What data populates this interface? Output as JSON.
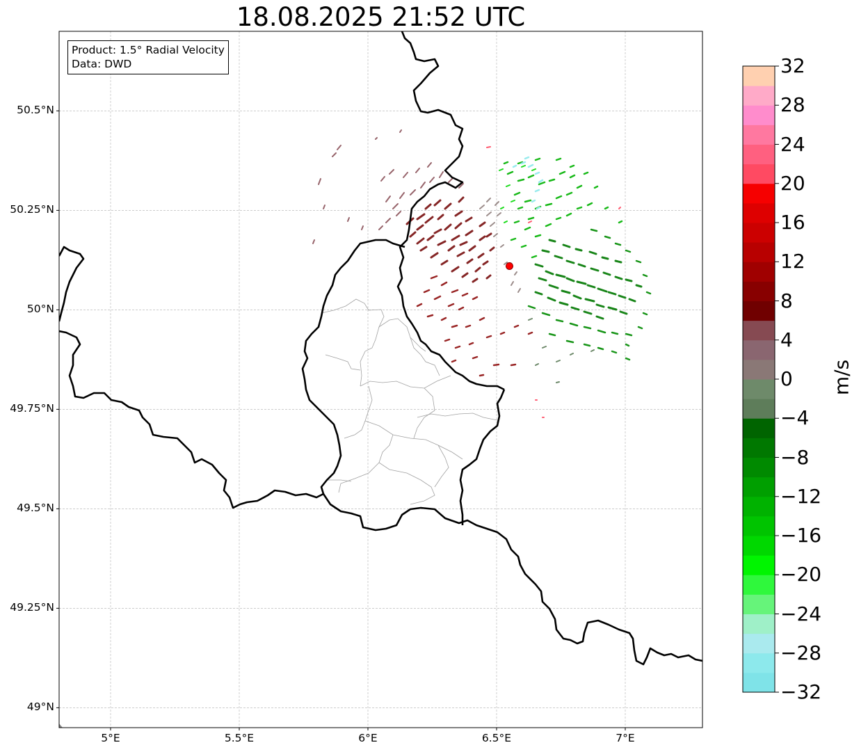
{
  "title": "18.08.2025 21:52 UTC",
  "info": {
    "product": "Product: 1.5° Radial Velocity",
    "data": "Data: DWD"
  },
  "map": {
    "extent": {
      "lon_min": 4.8,
      "lon_max": 7.3,
      "lat_min": 48.95,
      "lat_max": 50.7
    },
    "lat_ticks": [
      {
        "value": 50.5,
        "label": "50.5°N"
      },
      {
        "value": 50.25,
        "label": "50.25°N"
      },
      {
        "value": 50.0,
        "label": "50°N"
      },
      {
        "value": 49.75,
        "label": "49.75°N"
      },
      {
        "value": 49.5,
        "label": "49.5°N"
      },
      {
        "value": 49.25,
        "label": "49.25°N"
      },
      {
        "value": 49.0,
        "label": "49°N"
      }
    ],
    "lon_ticks": [
      {
        "value": 5.0,
        "label": "5°E"
      },
      {
        "value": 5.5,
        "label": "5.5°E"
      },
      {
        "value": 6.0,
        "label": "6°E"
      },
      {
        "value": 6.5,
        "label": "6.5°E"
      },
      {
        "value": 7.0,
        "label": "7°E"
      }
    ],
    "radar_site": {
      "lon": 6.55,
      "lat": 50.11,
      "color": "#ff0000"
    },
    "border_color": "#000000",
    "admin_color": "#a0a0a0",
    "grid_color": "#bbbbbb"
  },
  "colorbar": {
    "unit": "m/s",
    "min": -32,
    "max": 32,
    "tick_labels": [
      "32",
      "28",
      "24",
      "20",
      "16",
      "12",
      "8",
      "4",
      "0",
      "−4",
      "−8",
      "−12",
      "−16",
      "−20",
      "−24",
      "−28",
      "−32"
    ],
    "colors": [
      "#7fe3e8",
      "#8de9ec",
      "#aaeaee",
      "#9ff0c8",
      "#66f47a",
      "#2ff83c",
      "#00f500",
      "#00d800",
      "#00c400",
      "#00b200",
      "#009f00",
      "#008a00",
      "#007800",
      "#006400",
      "#5e7d5a",
      "#6e8a6a",
      "#8a7876",
      "#8a6670",
      "#864a52",
      "#700000",
      "#880000",
      "#a00000",
      "#b80000",
      "#cc0000",
      "#de0000",
      "#f60000",
      "#ff4a62",
      "#ff6080",
      "#ff78a0",
      "#ff8ccc",
      "#ffaac8",
      "#ffd0b0"
    ]
  }
}
